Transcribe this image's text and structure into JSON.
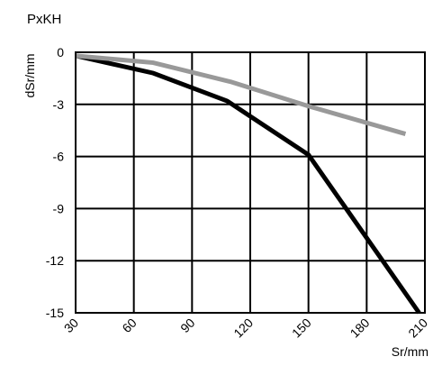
{
  "chart_data": {
    "type": "line",
    "title": "PxKH",
    "xlabel": "Sr/mm",
    "ylabel": "dSr/mm",
    "xlim": [
      30,
      210
    ],
    "ylim": [
      -15,
      0
    ],
    "x_ticks": [
      30,
      60,
      90,
      120,
      150,
      180,
      210
    ],
    "y_ticks": [
      0,
      -3,
      -6,
      -9,
      -12,
      -15
    ],
    "grid": true,
    "series": [
      {
        "color": "#000000",
        "x": [
          30,
          70,
          108,
          150,
          207
        ],
        "y": [
          -0.2,
          -1.2,
          -2.8,
          -5.9,
          -15
        ]
      },
      {
        "color": "#999999",
        "x": [
          30,
          70,
          110,
          150,
          200
        ],
        "y": [
          -0.2,
          -0.6,
          -1.7,
          -3.1,
          -4.7
        ]
      }
    ]
  }
}
